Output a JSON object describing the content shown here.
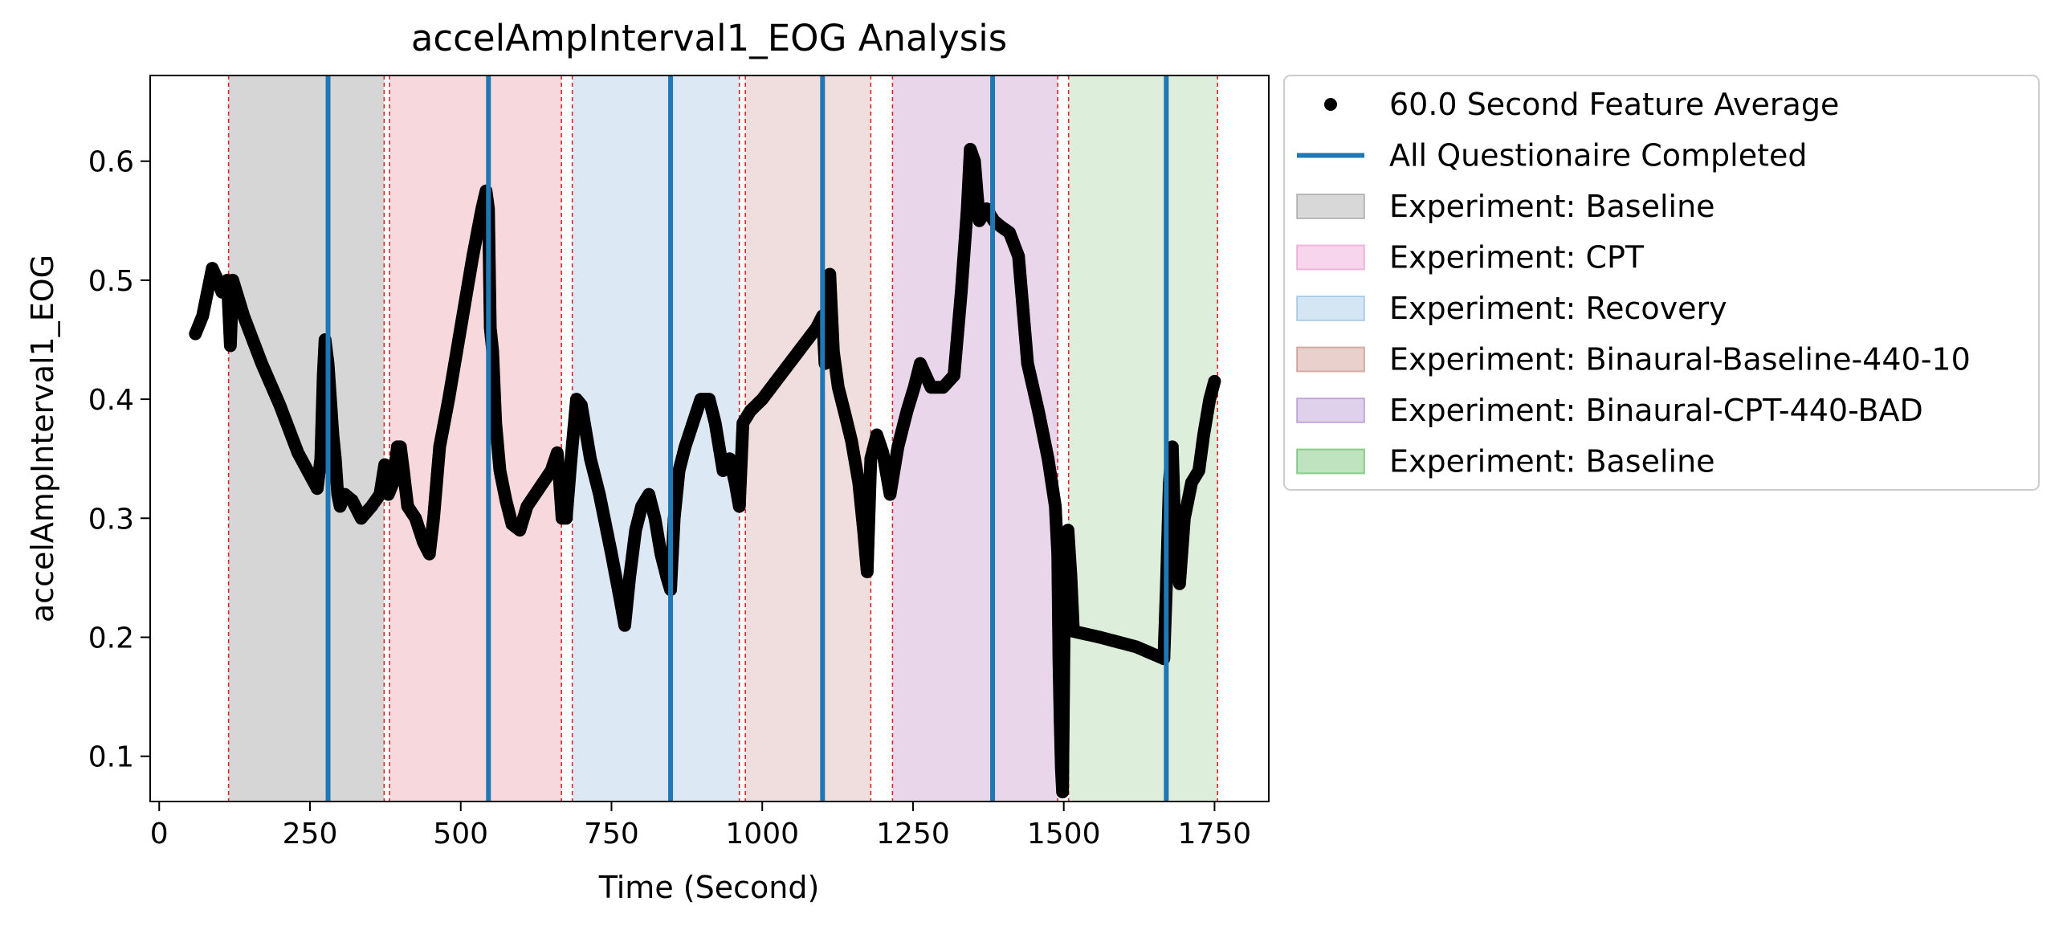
{
  "chart_data": {
    "type": "scatter",
    "title": "accelAmpInterval1_EOG Analysis",
    "xlabel": "Time (Second)",
    "ylabel": "accelAmpInterval1_EOG",
    "xlim": [
      -15,
      1840
    ],
    "ylim": [
      0.062,
      0.672
    ],
    "xticks": [
      0,
      250,
      500,
      750,
      1000,
      1250,
      1500,
      1750
    ],
    "yticks": [
      0.1,
      0.2,
      0.3,
      0.4,
      0.5,
      0.6
    ],
    "xtick_labels": [
      "0",
      "250",
      "500",
      "750",
      "1000",
      "1250",
      "1500",
      "1750"
    ],
    "ytick_labels": [
      "0.1",
      "0.2",
      "0.3",
      "0.4",
      "0.5",
      "0.6"
    ],
    "grid": false,
    "legend_position": "outside-right-top",
    "legend": [
      {
        "label": "60.0 Second Feature Average",
        "kind": "marker",
        "color": "#000000"
      },
      {
        "label": "All Questionaire Completed",
        "kind": "line",
        "color": "#1f77b4"
      },
      {
        "label": "Experiment: Baseline",
        "kind": "patch",
        "color": "#7f7f7f"
      },
      {
        "label": "Experiment: CPT",
        "kind": "patch",
        "color": "#e377c2"
      },
      {
        "label": "Experiment: Recovery",
        "kind": "patch",
        "color": "#6fa8d6"
      },
      {
        "label": "Experiment: Binaural-Baseline-440-10",
        "kind": "patch",
        "color": "#b5645a"
      },
      {
        "label": "Experiment: Binaural-CPT-440-BAD",
        "kind": "patch",
        "color": "#9467bd"
      },
      {
        "label": "Experiment: Baseline",
        "kind": "patch",
        "color": "#2ca02c"
      }
    ],
    "experiment_spans": [
      {
        "name": "Baseline",
        "start": 115,
        "end": 373,
        "fill": "#d6d6d6"
      },
      {
        "name": "CPT",
        "start": 382,
        "end": 667,
        "fill": "#f7d9dd"
      },
      {
        "name": "Recovery",
        "start": 685,
        "end": 962,
        "fill": "#dce8f3"
      },
      {
        "name": "Binaural-Baseline-440-10",
        "start": 972,
        "end": 1180,
        "fill": "#f0dede"
      },
      {
        "name": "Binaural-CPT-440-BAD",
        "start": 1216,
        "end": 1490,
        "fill": "#ead6ea"
      },
      {
        "name": "Baseline",
        "start": 1508,
        "end": 1755,
        "fill": "#ddefdb"
      }
    ],
    "boundary_lines": [
      115,
      373,
      382,
      667,
      685,
      962,
      972,
      1180,
      1216,
      1490,
      1508,
      1755
    ],
    "questionnaire_completed": [
      280,
      546,
      848,
      1100,
      1382,
      1670
    ],
    "series": [
      {
        "name": "60.0 Second Feature Average",
        "points": [
          [
            60,
            0.455
          ],
          [
            72,
            0.47
          ],
          [
            80,
            0.49
          ],
          [
            88,
            0.51
          ],
          [
            97,
            0.5
          ],
          [
            104,
            0.49
          ],
          [
            113,
            0.5
          ],
          [
            118,
            0.445
          ],
          [
            122,
            0.5
          ],
          [
            140,
            0.47
          ],
          [
            170,
            0.43
          ],
          [
            200,
            0.395
          ],
          [
            230,
            0.355
          ],
          [
            262,
            0.325
          ],
          [
            268,
            0.35
          ],
          [
            272,
            0.42
          ],
          [
            275,
            0.45
          ],
          [
            280,
            0.43
          ],
          [
            284,
            0.4
          ],
          [
            288,
            0.37
          ],
          [
            292,
            0.35
          ],
          [
            296,
            0.32
          ],
          [
            300,
            0.31
          ],
          [
            308,
            0.32
          ],
          [
            320,
            0.315
          ],
          [
            335,
            0.3
          ],
          [
            352,
            0.31
          ],
          [
            366,
            0.32
          ],
          [
            374,
            0.345
          ],
          [
            380,
            0.32
          ],
          [
            388,
            0.33
          ],
          [
            395,
            0.36
          ],
          [
            400,
            0.36
          ],
          [
            405,
            0.34
          ],
          [
            412,
            0.31
          ],
          [
            425,
            0.3
          ],
          [
            438,
            0.28
          ],
          [
            448,
            0.27
          ],
          [
            455,
            0.3
          ],
          [
            465,
            0.36
          ],
          [
            480,
            0.4
          ],
          [
            500,
            0.46
          ],
          [
            520,
            0.52
          ],
          [
            535,
            0.56
          ],
          [
            542,
            0.575
          ],
          [
            546,
            0.56
          ],
          [
            549,
            0.46
          ],
          [
            553,
            0.44
          ],
          [
            558,
            0.38
          ],
          [
            565,
            0.34
          ],
          [
            575,
            0.315
          ],
          [
            585,
            0.295
          ],
          [
            598,
            0.29
          ],
          [
            610,
            0.31
          ],
          [
            630,
            0.325
          ],
          [
            650,
            0.34
          ],
          [
            660,
            0.355
          ],
          [
            664,
            0.33
          ],
          [
            668,
            0.3
          ],
          [
            675,
            0.3
          ],
          [
            683,
            0.35
          ],
          [
            692,
            0.4
          ],
          [
            700,
            0.395
          ],
          [
            715,
            0.35
          ],
          [
            730,
            0.32
          ],
          [
            750,
            0.27
          ],
          [
            765,
            0.23
          ],
          [
            772,
            0.21
          ],
          [
            780,
            0.25
          ],
          [
            790,
            0.29
          ],
          [
            800,
            0.31
          ],
          [
            812,
            0.32
          ],
          [
            822,
            0.3
          ],
          [
            832,
            0.27
          ],
          [
            842,
            0.25
          ],
          [
            848,
            0.24
          ],
          [
            854,
            0.3
          ],
          [
            862,
            0.34
          ],
          [
            872,
            0.36
          ],
          [
            885,
            0.38
          ],
          [
            898,
            0.4
          ],
          [
            912,
            0.4
          ],
          [
            922,
            0.38
          ],
          [
            935,
            0.34
          ],
          [
            946,
            0.35
          ],
          [
            955,
            0.33
          ],
          [
            962,
            0.31
          ],
          [
            968,
            0.38
          ],
          [
            980,
            0.39
          ],
          [
            1000,
            0.4
          ],
          [
            1030,
            0.42
          ],
          [
            1060,
            0.44
          ],
          [
            1090,
            0.46
          ],
          [
            1100,
            0.47
          ],
          [
            1104,
            0.43
          ],
          [
            1108,
            0.47
          ],
          [
            1112,
            0.505
          ],
          [
            1118,
            0.44
          ],
          [
            1126,
            0.41
          ],
          [
            1136,
            0.39
          ],
          [
            1148,
            0.365
          ],
          [
            1160,
            0.33
          ],
          [
            1168,
            0.29
          ],
          [
            1174,
            0.255
          ],
          [
            1180,
            0.35
          ],
          [
            1190,
            0.37
          ],
          [
            1200,
            0.355
          ],
          [
            1212,
            0.32
          ],
          [
            1225,
            0.36
          ],
          [
            1240,
            0.39
          ],
          [
            1252,
            0.41
          ],
          [
            1262,
            0.43
          ],
          [
            1280,
            0.41
          ],
          [
            1300,
            0.41
          ],
          [
            1318,
            0.42
          ],
          [
            1330,
            0.49
          ],
          [
            1340,
            0.56
          ],
          [
            1345,
            0.61
          ],
          [
            1352,
            0.6
          ],
          [
            1360,
            0.55
          ],
          [
            1372,
            0.56
          ],
          [
            1384,
            0.55
          ],
          [
            1396,
            0.545
          ],
          [
            1410,
            0.54
          ],
          [
            1425,
            0.52
          ],
          [
            1440,
            0.43
          ],
          [
            1458,
            0.39
          ],
          [
            1474,
            0.35
          ],
          [
            1486,
            0.31
          ],
          [
            1490,
            0.27
          ],
          [
            1492,
            0.18
          ],
          [
            1494,
            0.13
          ],
          [
            1496,
            0.09
          ],
          [
            1498,
            0.07
          ],
          [
            1502,
            0.28
          ],
          [
            1507,
            0.29
          ],
          [
            1512,
            0.25
          ],
          [
            1516,
            0.205
          ],
          [
            1560,
            0.2
          ],
          [
            1620,
            0.192
          ],
          [
            1666,
            0.182
          ],
          [
            1670,
            0.24
          ],
          [
            1675,
            0.33
          ],
          [
            1680,
            0.36
          ],
          [
            1686,
            0.26
          ],
          [
            1692,
            0.245
          ],
          [
            1700,
            0.3
          ],
          [
            1712,
            0.33
          ],
          [
            1724,
            0.34
          ],
          [
            1732,
            0.37
          ],
          [
            1742,
            0.4
          ],
          [
            1750,
            0.415
          ]
        ]
      }
    ]
  }
}
